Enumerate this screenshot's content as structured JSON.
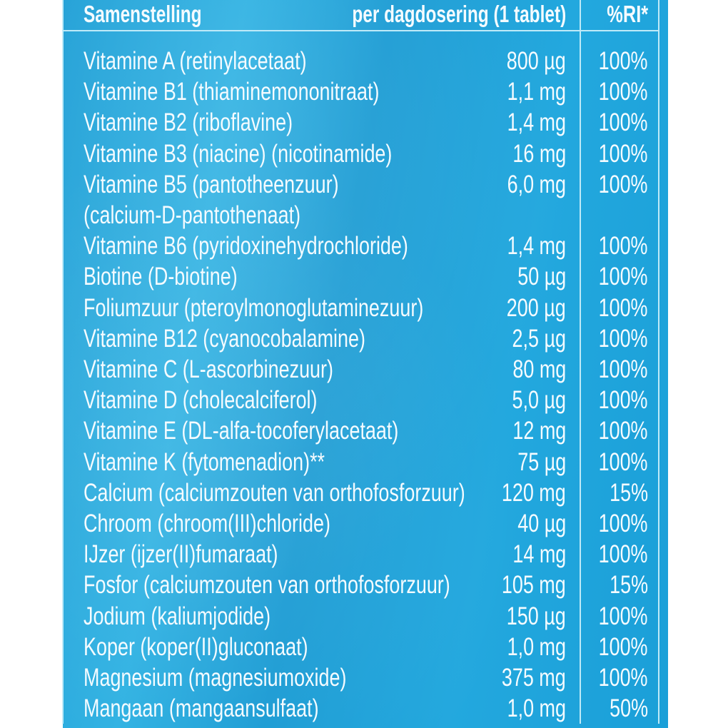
{
  "header": {
    "composition": "Samenstelling",
    "dose": "per dagdosering (1 tablet)",
    "ri": "%RI*"
  },
  "rows": [
    {
      "name": "Vitamine A (retinylacetaat)",
      "amount": "800 µg",
      "ri": "100%"
    },
    {
      "name": "Vitamine B1 (thiaminemononitraat)",
      "amount": "1,1 mg",
      "ri": "100%"
    },
    {
      "name": "Vitamine B2 (riboflavine)",
      "amount": "1,4 mg",
      "ri": "100%"
    },
    {
      "name": "Vitamine B3 (niacine) (nicotinamide)",
      "amount": "16 mg",
      "ri": "100%"
    },
    {
      "name": "Vitamine B5 (pantotheenzuur)",
      "amount": "6,0 mg",
      "ri": "100%"
    },
    {
      "name": "(calcium-D-pantothenaat)",
      "amount": "",
      "ri": ""
    },
    {
      "name": "Vitamine B6 (pyridoxinehydrochloride)",
      "amount": "1,4 mg",
      "ri": "100%"
    },
    {
      "name": "Biotine (D-biotine)",
      "amount": "50 µg",
      "ri": "100%"
    },
    {
      "name": "Foliumzuur (pteroylmonoglutaminezuur)",
      "amount": "200 µg",
      "ri": "100%"
    },
    {
      "name": "Vitamine B12 (cyanocobalamine)",
      "amount": "2,5 µg",
      "ri": "100%"
    },
    {
      "name": "Vitamine C (L-ascorbinezuur)",
      "amount": "80 mg",
      "ri": "100%"
    },
    {
      "name": "Vitamine D (cholecalciferol)",
      "amount": "5,0 µg",
      "ri": "100%"
    },
    {
      "name": "Vitamine E (DL-alfa-tocoferylacetaat)",
      "amount": "12 mg",
      "ri": "100%"
    },
    {
      "name": "Vitamine K (fytomenadion)**",
      "amount": "75 µg",
      "ri": "100%"
    },
    {
      "name": "Calcium (calciumzouten van orthofosforzuur)",
      "amount": "120 mg",
      "ri": "15%"
    },
    {
      "name": "Chroom (chroom(III)chloride)",
      "amount": "40 µg",
      "ri": "100%"
    },
    {
      "name": "IJzer (ijzer(II)fumaraat)",
      "amount": "14 mg",
      "ri": "100%"
    },
    {
      "name": "Fosfor (calciumzouten van orthofosforzuur)",
      "amount": "105 mg",
      "ri": "15%"
    },
    {
      "name": "Jodium (kaliumjodide)",
      "amount": "150 µg",
      "ri": "100%"
    },
    {
      "name": "Koper (koper(II)gluconaat)",
      "amount": "1,0 mg",
      "ri": "100%"
    },
    {
      "name": "Magnesium (magnesiumoxide)",
      "amount": "375 mg",
      "ri": "100%"
    },
    {
      "name": "Mangaan (mangaansulfaat)",
      "amount": "1,0 mg",
      "ri": "50%"
    }
  ],
  "colors": {
    "panel": "#1e9fd6",
    "text": "#f4fbff",
    "lines": "#bfeaf8"
  }
}
